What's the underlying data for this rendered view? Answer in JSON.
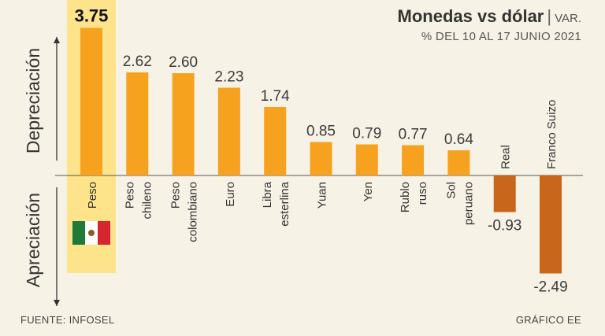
{
  "header": {
    "title": "Monedas vs dólar",
    "title_suffix": "VAR.",
    "subtitle": "% DEL 10 AL 17 JUNIO 2021"
  },
  "footer": {
    "source": "FUENTE: INFOSEL",
    "credit": "GRÁFICO EE"
  },
  "chart_data": {
    "type": "bar",
    "title": "Monedas vs dólar",
    "subtitle": "% DEL 10 AL 17 JUNIO 2021",
    "categories": [
      [
        "Peso"
      ],
      [
        "Peso",
        "chileno"
      ],
      [
        "Peso",
        "colombiano"
      ],
      [
        "Euro"
      ],
      [
        "Libra",
        "esterlina"
      ],
      [
        "Yuan"
      ],
      [
        "Yen"
      ],
      [
        "Rublo",
        "ruso"
      ],
      [
        "Sol",
        "peruano"
      ],
      [
        "Real"
      ],
      [
        "Franco Suizo"
      ]
    ],
    "values": [
      3.75,
      2.62,
      2.6,
      2.23,
      1.74,
      0.85,
      0.79,
      0.77,
      0.64,
      -0.93,
      -2.49
    ],
    "value_labels": [
      "3.75",
      "2.62",
      "2.60",
      "2.23",
      "1.74",
      "0.85",
      "0.79",
      "0.77",
      "0.64",
      "-0.93",
      "-2.49"
    ],
    "highlight_index": 0,
    "ylabel_positive": "Depreciación",
    "ylabel_negative": "Apreciación",
    "ylim": [
      -3.0,
      3.9
    ],
    "grid": false,
    "colors": {
      "positive": "#f6a21e",
      "negative": "#c8661c",
      "highlight_bg": "#fde48a",
      "baseline": "#555555"
    },
    "flag": {
      "name": "mexico-flag-icon",
      "colors": [
        "#1f7a3a",
        "#ffffff",
        "#d7262f"
      ]
    }
  }
}
